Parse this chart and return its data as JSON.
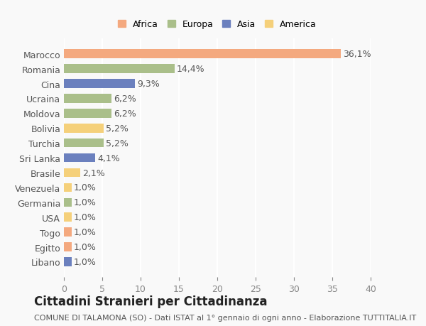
{
  "countries": [
    "Marocco",
    "Romania",
    "Cina",
    "Ucraina",
    "Moldova",
    "Bolivia",
    "Turchia",
    "Sri Lanka",
    "Brasile",
    "Venezuela",
    "Germania",
    "USA",
    "Togo",
    "Egitto",
    "Libano"
  ],
  "values": [
    36.1,
    14.4,
    9.3,
    6.2,
    6.2,
    5.2,
    5.2,
    4.1,
    2.1,
    1.0,
    1.0,
    1.0,
    1.0,
    1.0,
    1.0
  ],
  "labels": [
    "36,1%",
    "14,4%",
    "9,3%",
    "6,2%",
    "6,2%",
    "5,2%",
    "5,2%",
    "4,1%",
    "2,1%",
    "1,0%",
    "1,0%",
    "1,0%",
    "1,0%",
    "1,0%",
    "1,0%"
  ],
  "colors": [
    "#F4A97F",
    "#AABF8A",
    "#6B80BE",
    "#AABF8A",
    "#AABF8A",
    "#F5D07A",
    "#AABF8A",
    "#6B80BE",
    "#F5D07A",
    "#F5D07A",
    "#AABF8A",
    "#F5D07A",
    "#F4A97F",
    "#F4A97F",
    "#6B80BE"
  ],
  "legend_labels": [
    "Africa",
    "Europa",
    "Asia",
    "America"
  ],
  "legend_colors": [
    "#F4A97F",
    "#AABF8A",
    "#6B80BE",
    "#F5D07A"
  ],
  "title": "Cittadini Stranieri per Cittadinanza",
  "subtitle": "COMUNE DI TALAMONA (SO) - Dati ISTAT al 1° gennaio di ogni anno - Elaborazione TUTTITALIA.IT",
  "xlim": [
    0,
    40
  ],
  "xticks": [
    0,
    5,
    10,
    15,
    20,
    25,
    30,
    35,
    40
  ],
  "background_color": "#f9f9f9",
  "grid_color": "#ffffff",
  "bar_height": 0.6,
  "label_fontsize": 9,
  "tick_fontsize": 9,
  "title_fontsize": 12,
  "subtitle_fontsize": 8
}
